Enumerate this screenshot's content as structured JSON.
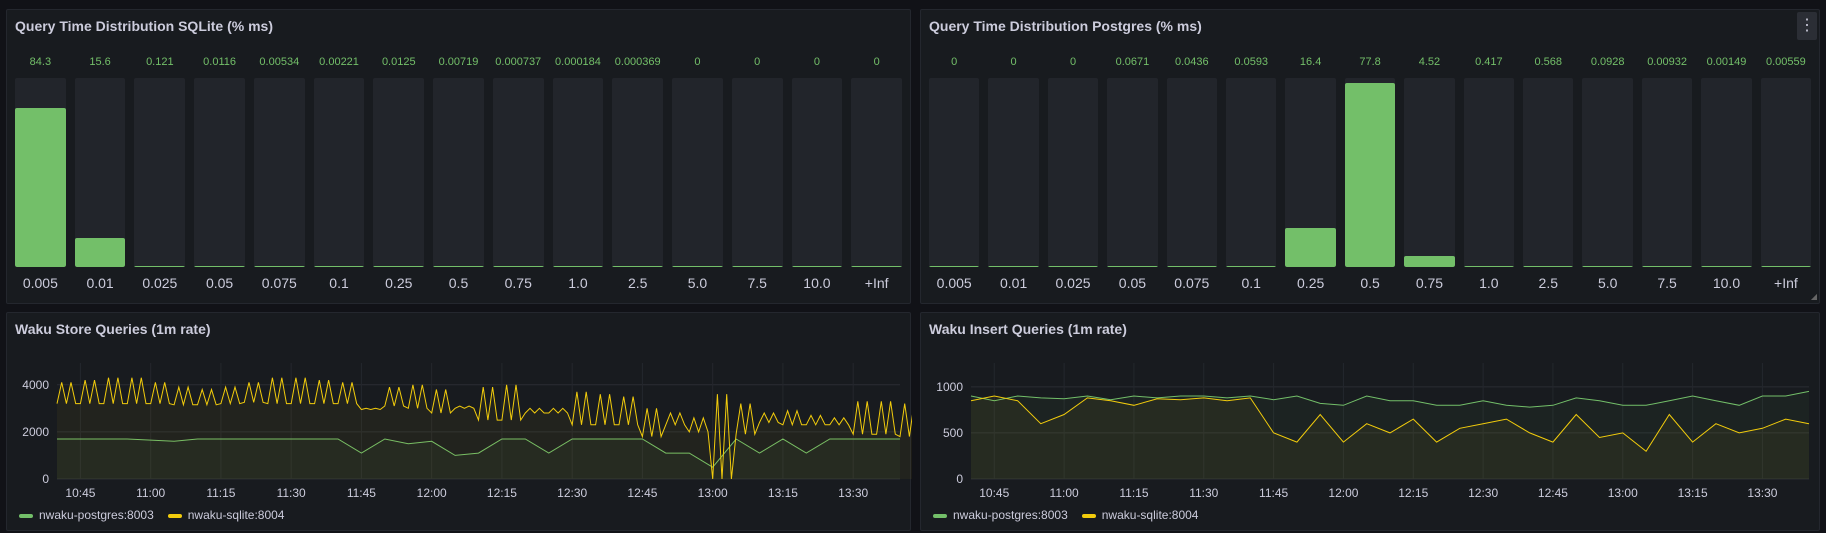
{
  "colors": {
    "green": "#73bf69",
    "yellow": "#f2cc0c",
    "background": "#111217",
    "panel": "#181b1f"
  },
  "panels": {
    "sqlite_dist": {
      "title": "Query Time Distribution SQLite (% ms)"
    },
    "postgres_dist": {
      "title": "Query Time Distribution Postgres (% ms)",
      "menu_icon": "⋮"
    },
    "store": {
      "title": "Waku Store Queries (1m rate)"
    },
    "insert": {
      "title": "Waku Insert Queries (1m rate)"
    }
  },
  "legend": [
    {
      "name": "nwaku-postgres:8003",
      "color": "#73bf69"
    },
    {
      "name": "nwaku-sqlite:8004",
      "color": "#f2cc0c"
    }
  ],
  "chart_data": [
    {
      "type": "bar",
      "title": "Query Time Distribution SQLite (% ms)",
      "max": 100,
      "categories": [
        "0.005",
        "0.01",
        "0.025",
        "0.05",
        "0.075",
        "0.1",
        "0.25",
        "0.5",
        "0.75",
        "1.0",
        "2.5",
        "5.0",
        "7.5",
        "10.0",
        "+Inf"
      ],
      "values": [
        "84.3",
        "15.6",
        "0.121",
        "0.0116",
        "0.00534",
        "0.00221",
        "0.0125",
        "0.00719",
        "0.000737",
        "0.000184",
        "0.000369",
        "0",
        "0",
        "0",
        "0"
      ]
    },
    {
      "type": "bar",
      "title": "Query Time Distribution Postgres (% ms)",
      "max": 80,
      "categories": [
        "0.005",
        "0.01",
        "0.025",
        "0.05",
        "0.075",
        "0.1",
        "0.25",
        "0.5",
        "0.75",
        "1.0",
        "2.5",
        "5.0",
        "7.5",
        "10.0",
        "+Inf"
      ],
      "values": [
        "0",
        "0",
        "0",
        "0.0671",
        "0.0436",
        "0.0593",
        "16.4",
        "77.8",
        "4.52",
        "0.417",
        "0.568",
        "0.0928",
        "0.00932",
        "0.00149",
        "0.00559"
      ]
    },
    {
      "type": "line",
      "title": "Waku Store Queries (1m rate)",
      "ylim": [
        0,
        4500
      ],
      "yticks": [
        "0",
        "2000",
        "4000"
      ],
      "xticks": [
        "10:45",
        "11:00",
        "11:15",
        "11:30",
        "11:45",
        "12:00",
        "12:15",
        "12:30",
        "12:45",
        "13:00",
        "13:15",
        "13:30"
      ],
      "x_start": "10:40",
      "x_end": "13:40",
      "x_step_minutes": 5,
      "series": [
        {
          "name": "nwaku-postgres:8003",
          "values": [
            1700,
            1700,
            1700,
            1700,
            1650,
            1600,
            1700,
            1700,
            1700,
            1700,
            1700,
            1700,
            1700,
            1100,
            1700,
            1500,
            1600,
            1000,
            1100,
            1700,
            1700,
            1100,
            1700,
            1700,
            1700,
            1700,
            1100,
            1100,
            500,
            1700,
            1100,
            1700,
            1100,
            1700,
            1700,
            1700,
            1700
          ]
        },
        {
          "name": "nwaku-sqlite:8004",
          "min": [
            3200,
            3200,
            3200,
            3200,
            3200,
            3150,
            3150,
            3200,
            3250,
            3200,
            3200,
            3200,
            3200,
            2950,
            3100,
            3000,
            2800,
            3000,
            2500,
            2500,
            2800,
            2800,
            2300,
            2300,
            2300,
            1800,
            2300,
            2000,
            0,
            1900,
            2400,
            2300,
            2300,
            2300,
            1900,
            1900,
            1800
          ],
          "max": [
            4100,
            4200,
            4300,
            4300,
            4100,
            3900,
            3800,
            3900,
            4100,
            4300,
            4300,
            4200,
            4100,
            3000,
            3900,
            4000,
            3800,
            3100,
            3900,
            4000,
            3000,
            3000,
            3700,
            3600,
            3500,
            3000,
            2800,
            2600,
            3600,
            3200,
            2800,
            2900,
            2700,
            2600,
            3300,
            3300,
            3200
          ]
        }
      ]
    },
    {
      "type": "line",
      "title": "Waku Insert Queries (1m rate)",
      "ylim": [
        0,
        1150
      ],
      "yticks": [
        "0",
        "500",
        "1000"
      ],
      "xticks": [
        "10:45",
        "11:00",
        "11:15",
        "11:30",
        "11:45",
        "12:00",
        "12:15",
        "12:30",
        "12:45",
        "13:00",
        "13:15",
        "13:30"
      ],
      "x_start": "10:40",
      "x_end": "13:40",
      "x_step_minutes": 5,
      "series": [
        {
          "name": "nwaku-postgres:8003",
          "values": [
            900,
            850,
            900,
            880,
            870,
            900,
            860,
            900,
            880,
            900,
            900,
            880,
            900,
            860,
            900,
            820,
            800,
            900,
            850,
            850,
            800,
            800,
            850,
            800,
            780,
            800,
            880,
            850,
            800,
            800,
            850,
            900,
            850,
            800,
            900,
            900,
            950
          ]
        },
        {
          "name": "nwaku-sqlite:8004",
          "values": [
            850,
            900,
            850,
            600,
            700,
            880,
            850,
            800,
            870,
            860,
            880,
            850,
            880,
            500,
            400,
            700,
            400,
            600,
            500,
            650,
            400,
            550,
            600,
            650,
            500,
            400,
            700,
            450,
            500,
            300,
            700,
            400,
            600,
            500,
            550,
            650,
            600
          ]
        }
      ]
    }
  ]
}
